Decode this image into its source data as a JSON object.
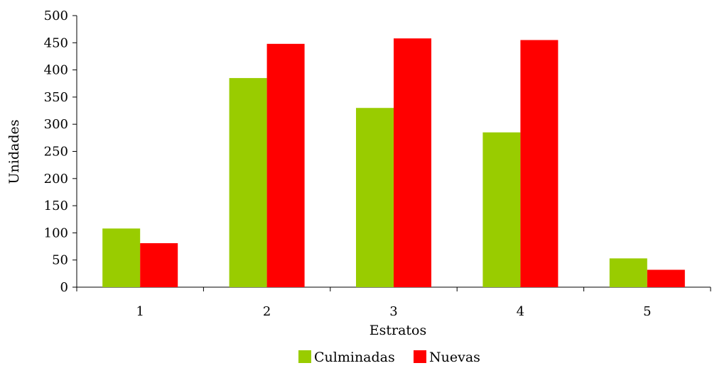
{
  "chart_data": {
    "type": "bar",
    "title": "",
    "xlabel": "Estratos",
    "ylabel": "Unidades",
    "categories": [
      "1",
      "2",
      "3",
      "4",
      "5"
    ],
    "series": [
      {
        "name": "Culminadas",
        "color": "#99cc00",
        "values": [
          108,
          385,
          330,
          285,
          53
        ]
      },
      {
        "name": "Nuevas",
        "color": "#ff0000",
        "values": [
          81,
          448,
          458,
          455,
          32
        ]
      }
    ],
    "ylim": [
      0,
      500
    ],
    "yticks": [
      "0",
      "50",
      "100",
      "150",
      "200",
      "250",
      "300",
      "350",
      "400",
      "450",
      "500"
    ],
    "grid": false,
    "legend_position": "bottom"
  }
}
